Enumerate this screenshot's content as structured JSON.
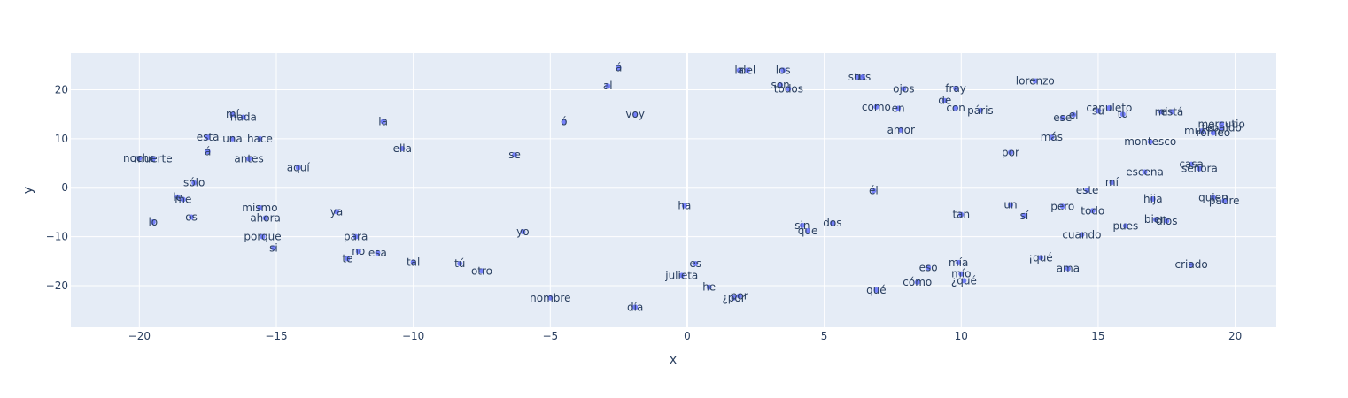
{
  "chart_data": {
    "type": "scatter",
    "xlabel": "x",
    "ylabel": "y",
    "xlim": [
      -22.5,
      21.5
    ],
    "ylim": [
      -28.5,
      27.5
    ],
    "xticks": [
      -20,
      -15,
      -10,
      -5,
      0,
      5,
      10,
      15,
      20
    ],
    "yticks": [
      -20,
      -10,
      0,
      10,
      20
    ],
    "grid": true,
    "marker_color": "#636efa",
    "plot_bgcolor": "#e5ecf6",
    "points": [
      {
        "label": "á",
        "x": -2.5,
        "y": 24.5
      },
      {
        "label": "al",
        "x": -2.9,
        "y": 20.8
      },
      {
        "label": "voy",
        "x": -1.9,
        "y": 15.0
      },
      {
        "label": "ó",
        "x": -4.5,
        "y": 13.5
      },
      {
        "label": "se",
        "x": -6.3,
        "y": 6.7
      },
      {
        "label": "la",
        "x": 1.9,
        "y": 24.0
      },
      {
        "label": "del",
        "x": 2.2,
        "y": 24.0
      },
      {
        "label": "los",
        "x": 3.5,
        "y": 24.0
      },
      {
        "label": "son",
        "x": 3.4,
        "y": 21.0
      },
      {
        "label": "todos",
        "x": 3.7,
        "y": 20.2
      },
      {
        "label": "sus",
        "x": 6.2,
        "y": 22.6
      },
      {
        "label": "tus",
        "x": 6.4,
        "y": 22.6
      },
      {
        "label": "lorenzo",
        "x": 12.7,
        "y": 21.8
      },
      {
        "label": "ojos",
        "x": 7.9,
        "y": 20.2
      },
      {
        "label": "fray",
        "x": 9.8,
        "y": 20.3
      },
      {
        "label": "de",
        "x": 9.4,
        "y": 17.8
      },
      {
        "label": "como",
        "x": 6.9,
        "y": 16.5
      },
      {
        "label": "en",
        "x": 7.7,
        "y": 16.2
      },
      {
        "label": "con",
        "x": 9.8,
        "y": 16.3
      },
      {
        "label": "páris",
        "x": 10.7,
        "y": 15.8
      },
      {
        "label": "capuleto",
        "x": 15.4,
        "y": 16.3
      },
      {
        "label": "su",
        "x": 15.0,
        "y": 15.7
      },
      {
        "label": "tu",
        "x": 15.9,
        "y": 15.0
      },
      {
        "label": "mi",
        "x": 17.3,
        "y": 15.5
      },
      {
        "label": "está",
        "x": 17.7,
        "y": 15.5
      },
      {
        "label": "ese",
        "x": 13.7,
        "y": 14.3
      },
      {
        "label": "el",
        "x": 14.1,
        "y": 14.9
      },
      {
        "label": "amor",
        "x": 7.8,
        "y": 11.8
      },
      {
        "label": "más",
        "x": 13.3,
        "y": 10.3
      },
      {
        "label": "mercutio",
        "x": 19.5,
        "y": 13.0
      },
      {
        "label": "mucho",
        "x": 18.8,
        "y": 11.6
      },
      {
        "label": "tebaldo",
        "x": 19.5,
        "y": 12.2
      },
      {
        "label": "romeo",
        "x": 19.2,
        "y": 11.2
      },
      {
        "label": "montesco",
        "x": 16.9,
        "y": 9.4
      },
      {
        "label": "por",
        "x": 11.8,
        "y": 7.2
      },
      {
        "label": "casa",
        "x": 18.4,
        "y": 4.8
      },
      {
        "label": "señora",
        "x": 18.7,
        "y": 3.9
      },
      {
        "label": "escena",
        "x": 16.7,
        "y": 3.2
      },
      {
        "label": "mí",
        "x": 15.5,
        "y": 1.1
      },
      {
        "label": "este",
        "x": 14.6,
        "y": -0.5
      },
      {
        "label": "él",
        "x": 6.8,
        "y": -0.6
      },
      {
        "label": "hija",
        "x": 17.0,
        "y": -2.3
      },
      {
        "label": "quien",
        "x": 19.2,
        "y": -2.0
      },
      {
        "label": "padre",
        "x": 19.6,
        "y": -2.7
      },
      {
        "label": "un",
        "x": 11.8,
        "y": -3.5
      },
      {
        "label": "pero",
        "x": 13.7,
        "y": -3.8
      },
      {
        "label": "todo",
        "x": 14.8,
        "y": -4.7
      },
      {
        "label": "sí",
        "x": 12.3,
        "y": -5.7
      },
      {
        "label": "tan",
        "x": 10.0,
        "y": -5.5
      },
      {
        "label": "dos",
        "x": 5.3,
        "y": -7.2
      },
      {
        "label": "sin",
        "x": 4.2,
        "y": -7.7
      },
      {
        "label": "que",
        "x": 4.4,
        "y": -8.8
      },
      {
        "label": "bien",
        "x": 17.1,
        "y": -6.5
      },
      {
        "label": "dios",
        "x": 17.5,
        "y": -6.8
      },
      {
        "label": "pues",
        "x": 16.0,
        "y": -7.8
      },
      {
        "label": "cuando",
        "x": 14.4,
        "y": -9.6
      },
      {
        "label": "¡qué",
        "x": 12.9,
        "y": -14.3
      },
      {
        "label": "ama",
        "x": 13.9,
        "y": -16.5
      },
      {
        "label": "eso",
        "x": 8.8,
        "y": -16.3
      },
      {
        "label": "mía",
        "x": 9.9,
        "y": -15.3
      },
      {
        "label": "mío",
        "x": 10.0,
        "y": -17.6
      },
      {
        "label": "¿qué",
        "x": 10.1,
        "y": -19.0
      },
      {
        "label": "cómo",
        "x": 8.4,
        "y": -19.3
      },
      {
        "label": "qué",
        "x": 6.9,
        "y": -20.9
      },
      {
        "label": "criado",
        "x": 18.4,
        "y": -15.7
      },
      {
        "label": "ha",
        "x": -0.1,
        "y": -3.7
      },
      {
        "label": "es",
        "x": 0.3,
        "y": -15.5
      },
      {
        "label": "julieta",
        "x": -0.2,
        "y": -17.9
      },
      {
        "label": "he",
        "x": 0.8,
        "y": -20.3
      },
      {
        "label": "¿por",
        "x": 1.7,
        "y": -22.5
      },
      {
        "label": "por",
        "x": 1.9,
        "y": -22.1
      },
      {
        "label": "nombre",
        "x": -5.0,
        "y": -22.5
      },
      {
        "label": "día",
        "x": -1.9,
        "y": -24.4
      },
      {
        "label": "yo",
        "x": -6.0,
        "y": -9.0
      },
      {
        "label": "otro",
        "x": -7.5,
        "y": -17.0
      },
      {
        "label": "tú",
        "x": -8.3,
        "y": -15.5
      },
      {
        "label": "tal",
        "x": -10.0,
        "y": -15.2
      },
      {
        "label": "esa",
        "x": -11.3,
        "y": -13.3
      },
      {
        "label": "no",
        "x": -12.0,
        "y": -13.0
      },
      {
        "label": "te",
        "x": -12.4,
        "y": -14.5
      },
      {
        "label": "para",
        "x": -12.1,
        "y": -10.0
      },
      {
        "label": "ya",
        "x": -12.8,
        "y": -4.9
      },
      {
        "label": "si",
        "x": -15.1,
        "y": -12.3
      },
      {
        "label": "porque",
        "x": -15.5,
        "y": -10.0
      },
      {
        "label": "mismo",
        "x": -15.6,
        "y": -4.1
      },
      {
        "label": "ahora",
        "x": -15.4,
        "y": -6.2
      },
      {
        "label": "os",
        "x": -18.1,
        "y": -6.0
      },
      {
        "label": "lo",
        "x": -19.5,
        "y": -7.0
      },
      {
        "label": "le",
        "x": -18.6,
        "y": -1.9
      },
      {
        "label": "me",
        "x": -18.4,
        "y": -2.4
      },
      {
        "label": "sólo",
        "x": -18.0,
        "y": 1.0
      },
      {
        "label": "noche",
        "x": -20.0,
        "y": 6.0
      },
      {
        "label": "muerte",
        "x": -19.5,
        "y": 5.9
      },
      {
        "label": "antes",
        "x": -16.0,
        "y": 5.9
      },
      {
        "label": "aquí",
        "x": -14.2,
        "y": 4.1
      },
      {
        "label": "á",
        "x": -17.5,
        "y": 7.4
      },
      {
        "label": "esta",
        "x": -17.5,
        "y": 10.3
      },
      {
        "label": "una",
        "x": -16.6,
        "y": 10.0
      },
      {
        "label": "hace",
        "x": -15.6,
        "y": 10.0
      },
      {
        "label": "mí",
        "x": -16.6,
        "y": 15.0
      },
      {
        "label": "nada",
        "x": -16.2,
        "y": 14.4
      },
      {
        "label": "la",
        "x": -11.1,
        "y": 13.5
      },
      {
        "label": "ella",
        "x": -10.4,
        "y": 8.0
      }
    ]
  }
}
